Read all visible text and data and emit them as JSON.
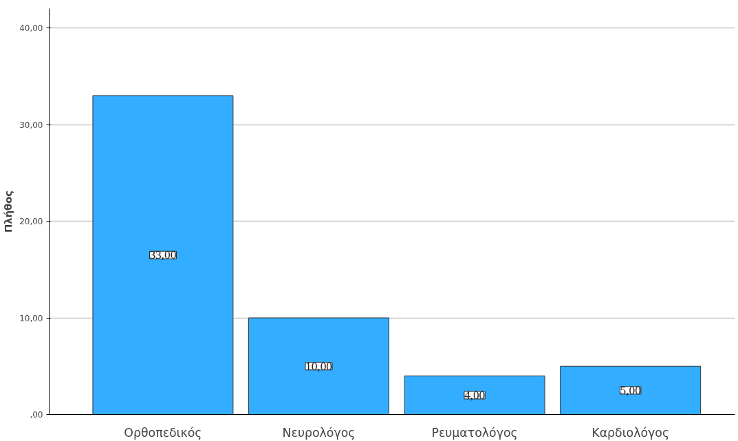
{
  "chart_data": {
    "type": "bar",
    "ylabel": "Πλήθος",
    "categories": [
      "Ορθοπεδικός",
      "Νευρολόγος",
      "Ρευματολόγος",
      "Καρδιολόγος"
    ],
    "values": [
      33,
      10,
      4,
      5
    ],
    "color": "#33adff",
    "value_labels": [
      "33,00",
      "10,00",
      "4,00",
      "5,00"
    ],
    "ylim": [
      0,
      42
    ],
    "yticks": [
      {
        "value": 0,
        "label": ",00"
      },
      {
        "value": 10,
        "label": "10,00"
      },
      {
        "value": 20,
        "label": "20,00"
      },
      {
        "value": 30,
        "label": "30,00"
      },
      {
        "value": 40,
        "label": "40,00"
      }
    ],
    "grid": "y"
  }
}
